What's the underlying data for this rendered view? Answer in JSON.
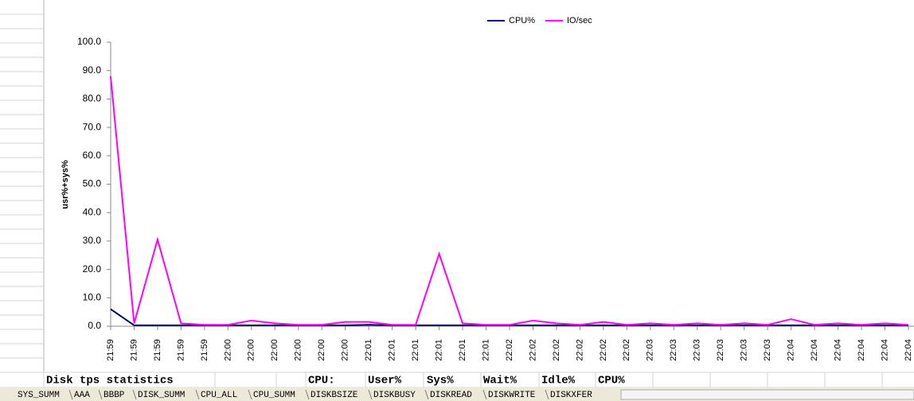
{
  "chart_data": {
    "type": "line",
    "y_label": "usr%+sys%",
    "categories": [
      "21:59",
      "21:59",
      "21:59",
      "21:59",
      "21:59",
      "22:00",
      "22:00",
      "22:00",
      "22:00",
      "22:00",
      "22:00",
      "22:01",
      "22:01",
      "22:01",
      "22:01",
      "22:01",
      "22:01",
      "22:02",
      "22:02",
      "22:02",
      "22:02",
      "22:02",
      "22:02",
      "22:03",
      "22:03",
      "22:03",
      "22:03",
      "22:03",
      "22:03",
      "22:04",
      "22:04",
      "22:04",
      "22:04",
      "22:04",
      "22:04"
    ],
    "series": [
      {
        "name": "CPU%",
        "color": "#000066",
        "values": [
          6,
          0.3,
          0.3,
          0.3,
          0.3,
          0.3,
          0.3,
          0.3,
          0.3,
          0.3,
          0.3,
          0.5,
          0.3,
          0.3,
          0.3,
          0.3,
          0.3,
          0.3,
          0.3,
          0.3,
          0.3,
          0.3,
          0.3,
          0.3,
          0.3,
          0.3,
          0.3,
          0.3,
          0.3,
          0.3,
          0.3,
          0.3,
          0.3,
          0.3,
          0.3
        ]
      },
      {
        "name": "IO/sec",
        "color": "#ff00ff",
        "values": [
          88,
          1,
          30.5,
          1,
          0.5,
          0.5,
          2,
          1,
          0.5,
          0.5,
          1.5,
          1.5,
          0.5,
          0.5,
          25.5,
          1,
          0.5,
          0.5,
          2,
          1,
          0.5,
          1.5,
          0.5,
          1,
          0.5,
          1,
          0.5,
          1,
          0.5,
          2.5,
          0.5,
          1,
          0.5,
          1,
          0.5
        ]
      }
    ],
    "ylim": [
      0,
      100
    ],
    "yticks": [
      {
        "value": 0,
        "label": "0.0"
      },
      {
        "value": 10,
        "label": "10.0"
      },
      {
        "value": 20,
        "label": "20.0"
      },
      {
        "value": 30,
        "label": "30.0"
      },
      {
        "value": 40,
        "label": "40.0"
      },
      {
        "value": 50,
        "label": "50.0"
      },
      {
        "value": 60,
        "label": "60.0"
      },
      {
        "value": 70,
        "label": "70.0"
      },
      {
        "value": 80,
        "label": "80.0"
      },
      {
        "value": 90,
        "label": "90.0"
      },
      {
        "value": 100,
        "label": "100.0"
      }
    ],
    "grid": false,
    "legend": "top"
  },
  "sheet": {
    "row": [
      "Disk tps statistics",
      "CPU:",
      "User%",
      "Sys%",
      "Wait%",
      "Idle%",
      "CPU%"
    ],
    "tabs": [
      "SYS_SUMM",
      "AAA",
      "BBBP",
      "DISK_SUMM",
      "CPU_ALL",
      "CPU_SUMM",
      "DISKBSIZE",
      "DISKBUSY",
      "DISKREAD",
      "DISKWRITE",
      "DISKXFER"
    ]
  }
}
